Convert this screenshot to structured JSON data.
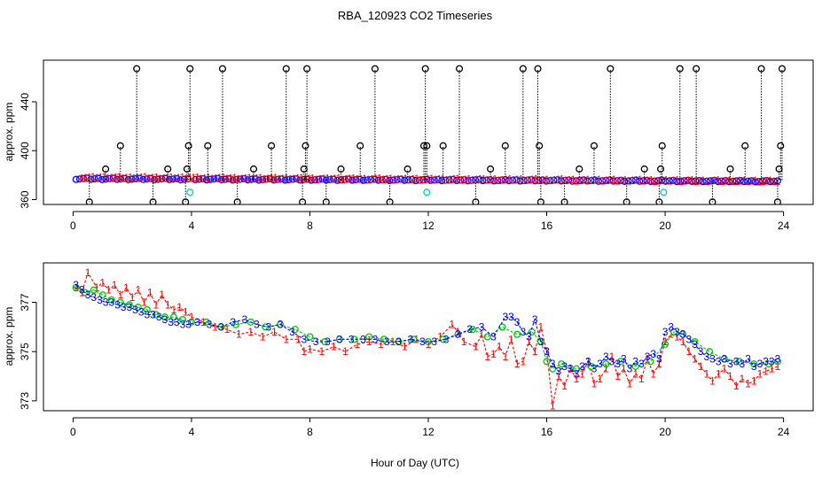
{
  "chart_data": {
    "title": "RBA_120923  CO2 Timeseries",
    "xlabel": "Hour of Day (UTC)",
    "panels": [
      {
        "type": "scatter",
        "ylabel": "approx. ppm",
        "xlim": [
          -1,
          25
        ],
        "ylim": [
          356,
          474
        ],
        "xticks": [
          0,
          4,
          8,
          12,
          16,
          20,
          24
        ],
        "yticks": [
          360,
          400,
          440
        ],
        "series": [
          {
            "color": "#0000ff",
            "marker": "o",
            "x_start": 0.1,
            "x_end": 23.8,
            "y_start": 377,
            "y_end": 375,
            "break_at": 3.95
          },
          {
            "color": "#ff0000",
            "marker": "1",
            "x_start": 0.3,
            "x_end": 23.8,
            "y_start": 378,
            "y_end": 375
          },
          {
            "color": "#000000",
            "marker": "o",
            "style": "spikes",
            "baseline": 376,
            "x": [
              0.55,
              1.1,
              1.6,
              2.15,
              2.7,
              3.2,
              3.8,
              3.85,
              3.9,
              3.95,
              4.55,
              5.05,
              5.55,
              6.1,
              6.7,
              7.2,
              7.75,
              7.8,
              7.85,
              7.9,
              8.55,
              9.05,
              9.7,
              10.2,
              10.7,
              11.3,
              11.85,
              11.9,
              11.95,
              12.5,
              13.05,
              13.6,
              14.1,
              14.6,
              15.2,
              15.7,
              15.75,
              15.8,
              16.6,
              17.1,
              17.6,
              18.15,
              18.7,
              19.3,
              19.8,
              19.85,
              19.9,
              20.5,
              21.05,
              21.6,
              22.2,
              22.7,
              23.25,
              23.8,
              23.85,
              23.9,
              23.95
            ],
            "y": [
              358,
              385,
              404,
              467,
              358,
              385,
              358,
              385,
              404,
              467,
              404,
              467,
              358,
              385,
              404,
              467,
              358,
              385,
              404,
              467,
              358,
              385,
              404,
              467,
              358,
              385,
              404,
              467,
              404,
              404,
              467,
              358,
              385,
              404,
              467,
              467,
              404,
              358,
              358,
              385,
              404,
              467,
              358,
              385,
              358,
              385,
              404,
              467,
              467,
              358,
              385,
              404,
              467,
              358,
              385,
              404,
              467
            ]
          },
          {
            "color": "#00c8c8",
            "marker": "o",
            "x": [
              3.95,
              11.95,
              19.95
            ],
            "y": [
              366,
              366,
              366
            ]
          }
        ]
      },
      {
        "type": "line",
        "ylabel": "approx. ppm",
        "xlim": [
          -1,
          25
        ],
        "ylim": [
          372.6,
          378.6
        ],
        "xticks": [
          0,
          4,
          8,
          12,
          16,
          20,
          24
        ],
        "yticks": [
          373,
          375,
          377
        ],
        "series": [
          {
            "color": "#ff0000",
            "marker": "1",
            "x": [
              0.1,
              0.3,
              0.5,
              0.8,
              1.0,
              1.2,
              1.4,
              1.6,
              1.8,
              2.0,
              2.2,
              2.4,
              2.6,
              2.8,
              3.0,
              3.2,
              3.4,
              3.6,
              3.8,
              4.0,
              4.4,
              4.8,
              5.2,
              5.6,
              6.0,
              6.4,
              6.8,
              7.2,
              7.6,
              7.8,
              8.0,
              8.4,
              8.8,
              9.2,
              9.6,
              10.0,
              10.4,
              10.8,
              11.2,
              11.6,
              12.0,
              12.4,
              12.8,
              13.0,
              13.2,
              13.6,
              13.8,
              14.0,
              14.2,
              14.4,
              14.6,
              14.8,
              15.0,
              15.2,
              15.4,
              15.6,
              15.8,
              16.0,
              16.2,
              16.4,
              16.6,
              16.8,
              17.0,
              17.2,
              17.4,
              17.6,
              17.8,
              18.0,
              18.2,
              18.4,
              18.6,
              18.8,
              19.0,
              19.2,
              19.4,
              19.6,
              19.8,
              20.0,
              20.2,
              20.4,
              20.6,
              20.8,
              21.0,
              21.2,
              21.4,
              21.6,
              21.8,
              22.0,
              22.2,
              22.4,
              22.6,
              22.8,
              23.0,
              23.2,
              23.4,
              23.6,
              23.8
            ],
            "y": [
              377.6,
              377.4,
              378.2,
              377.6,
              377.8,
              377.5,
              377.7,
              377.3,
              377.6,
              377.2,
              377.5,
              377.0,
              377.4,
              376.9,
              377.3,
              376.9,
              376.7,
              376.8,
              376.6,
              376.4,
              376.2,
              376.0,
              375.9,
              375.7,
              375.8,
              375.6,
              375.8,
              375.5,
              375.5,
              375.0,
              375.1,
              375.0,
              375.2,
              375.0,
              375.3,
              375.4,
              375.3,
              375.4,
              375.2,
              375.5,
              375.3,
              375.6,
              376.1,
              375.8,
              375.4,
              375.2,
              375.7,
              374.8,
              374.9,
              375.2,
              374.8,
              375.5,
              374.5,
              374.6,
              375.4,
              375.0,
              376.0,
              375.0,
              372.8,
              374.0,
              373.6,
              374.3,
              373.9,
              374.1,
              374.6,
              373.7,
              373.9,
              374.3,
              374.8,
              374.0,
              374.3,
              373.7,
              374.1,
              373.9,
              374.7,
              374.1,
              374.5,
              375.4,
              375.7,
              375.6,
              375.4,
              375.0,
              374.7,
              374.4,
              374.1,
              373.8,
              374.1,
              374.3,
              374.0,
              373.6,
              373.9,
              373.7,
              373.8,
              374.1,
              374.2,
              374.3,
              374.4
            ]
          },
          {
            "color": "#00c800",
            "marker": "o",
            "x": [
              0.1,
              0.4,
              0.7,
              1.0,
              1.3,
              1.6,
              1.9,
              2.2,
              2.5,
              2.8,
              3.1,
              3.4,
              3.7,
              4.0,
              4.5,
              5.0,
              5.5,
              6.0,
              6.5,
              7.0,
              7.5,
              8.0,
              8.5,
              9.0,
              9.5,
              10.0,
              10.5,
              11.0,
              11.5,
              12.0,
              12.5,
              13.0,
              13.5,
              14.0,
              14.5,
              15.0,
              15.5,
              15.8,
              16.0,
              16.2,
              16.5,
              17.0,
              17.5,
              18.0,
              18.5,
              19.0,
              19.5,
              20.0,
              20.3,
              20.6,
              21.0,
              21.5,
              22.0,
              22.5,
              23.0,
              23.5,
              23.8
            ],
            "y": [
              377.6,
              377.4,
              377.5,
              377.3,
              377.1,
              377.0,
              376.9,
              376.8,
              376.7,
              376.5,
              376.4,
              376.4,
              376.3,
              376.2,
              376.2,
              376.0,
              376.1,
              376.2,
              376.0,
              376.1,
              375.9,
              375.6,
              375.4,
              375.5,
              375.5,
              375.6,
              375.5,
              375.4,
              375.5,
              375.4,
              375.5,
              375.7,
              375.9,
              375.6,
              376.0,
              375.7,
              375.8,
              375.4,
              374.6,
              374.3,
              374.5,
              374.3,
              374.4,
              374.5,
              374.6,
              374.4,
              374.6,
              375.3,
              375.8,
              375.7,
              375.4,
              375.0,
              374.7,
              374.6,
              374.5,
              374.5,
              374.6
            ]
          },
          {
            "color": "#0000ff",
            "marker": "3",
            "x": [
              0.1,
              0.3,
              0.5,
              0.7,
              0.9,
              1.1,
              1.3,
              1.5,
              1.7,
              1.9,
              2.1,
              2.3,
              2.5,
              2.7,
              2.9,
              3.1,
              3.3,
              3.5,
              3.7,
              3.9,
              4.2,
              4.6,
              5.0,
              5.4,
              5.8,
              6.2,
              6.6,
              7.0,
              7.4,
              7.8,
              8.2,
              8.6,
              9.0,
              9.4,
              9.8,
              10.2,
              10.6,
              11.0,
              11.4,
              11.8,
              12.2,
              12.6,
              13.0,
              13.4,
              13.8,
              14.2,
              14.6,
              14.8,
              15.0,
              15.2,
              15.4,
              15.6,
              15.8,
              16.0,
              16.2,
              16.4,
              16.6,
              16.8,
              17.0,
              17.2,
              17.4,
              17.6,
              17.8,
              18.0,
              18.2,
              18.4,
              18.6,
              18.8,
              19.0,
              19.2,
              19.4,
              19.6,
              19.8,
              20.0,
              20.2,
              20.4,
              20.6,
              20.8,
              21.0,
              21.2,
              21.4,
              21.6,
              21.8,
              22.0,
              22.2,
              22.4,
              22.6,
              22.8,
              23.0,
              23.2,
              23.4,
              23.6,
              23.8
            ],
            "y": [
              377.7,
              377.5,
              377.3,
              377.2,
              377.1,
              377.0,
              377.0,
              376.9,
              376.8,
              376.8,
              376.7,
              376.6,
              376.5,
              376.5,
              376.4,
              376.3,
              376.2,
              376.2,
              376.1,
              376.1,
              376.2,
              376.1,
              376.0,
              376.2,
              376.3,
              376.1,
              376.0,
              376.1,
              375.8,
              375.5,
              375.4,
              375.4,
              375.5,
              375.5,
              375.5,
              375.5,
              375.4,
              375.4,
              375.5,
              375.4,
              375.4,
              375.5,
              375.7,
              375.9,
              376.0,
              375.6,
              376.4,
              376.4,
              376.2,
              375.8,
              375.6,
              376.3,
              375.4,
              375.0,
              374.5,
              374.2,
              374.4,
              374.3,
              374.1,
              374.4,
              374.6,
              374.3,
              374.5,
              374.8,
              374.6,
              374.5,
              374.7,
              374.3,
              374.6,
              374.5,
              374.8,
              374.9,
              374.7,
              375.8,
              376.0,
              375.8,
              375.7,
              375.5,
              375.3,
              375.0,
              374.8,
              374.7,
              374.6,
              374.7,
              374.5,
              374.6,
              374.5,
              374.7,
              374.4,
              374.5,
              374.6,
              374.6,
              374.7
            ]
          }
        ]
      }
    ]
  }
}
